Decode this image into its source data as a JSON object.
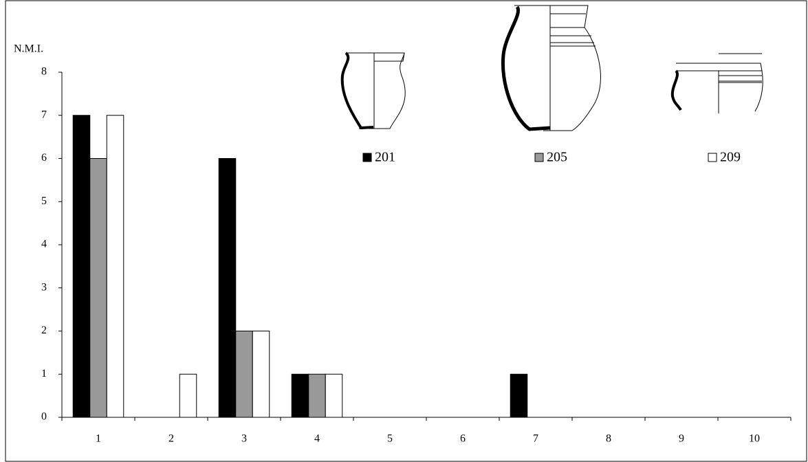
{
  "chart_data": {
    "type": "bar",
    "y_label": "N.M.I.",
    "categories": [
      "1",
      "2",
      "3",
      "4",
      "5",
      "6",
      "7",
      "8",
      "9",
      "10"
    ],
    "series": [
      {
        "name": "201",
        "color": "#000000",
        "values": [
          7,
          0,
          6,
          1,
          0,
          0,
          1,
          0,
          0,
          0
        ]
      },
      {
        "name": "205",
        "color": "#999999",
        "values": [
          6,
          0,
          2,
          1,
          0,
          0,
          0,
          0,
          0,
          0
        ]
      },
      {
        "name": "209",
        "color": "#ffffff",
        "values": [
          7,
          1,
          2,
          1,
          0,
          0,
          0,
          0,
          0,
          0
        ]
      }
    ],
    "ylim": [
      0,
      8
    ],
    "yticks": [
      0,
      1,
      2,
      3,
      4,
      5,
      6,
      7,
      8
    ],
    "grid": false
  }
}
